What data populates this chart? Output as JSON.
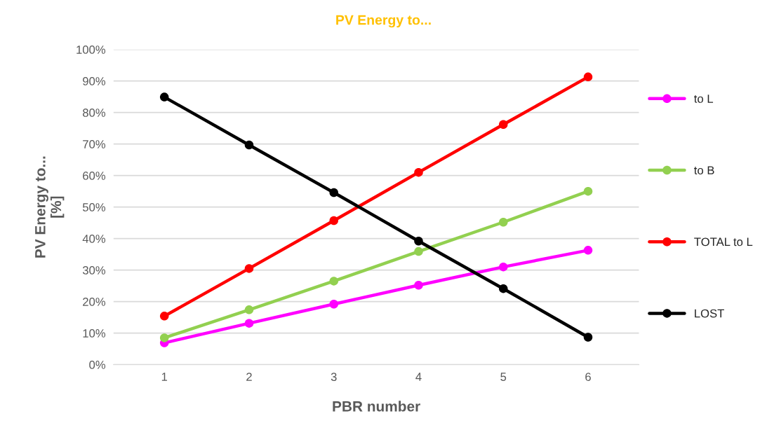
{
  "chart_data": {
    "type": "line",
    "title": "PV Energy to...",
    "xlabel": "PBR number",
    "ylabel": "PV Energy to...\n[%]",
    "categories": [
      "1",
      "2",
      "3",
      "4",
      "5",
      "6"
    ],
    "series": [
      {
        "name": "to L",
        "color": "#ff00ff",
        "values": [
          6.9,
          13.1,
          19.2,
          25.2,
          31.0,
          36.3
        ]
      },
      {
        "name": "to B",
        "color": "#92d050",
        "values": [
          8.5,
          17.4,
          26.5,
          35.9,
          45.2,
          55.0
        ]
      },
      {
        "name": "TOTAL to L",
        "color": "#ff0000",
        "values": [
          15.4,
          30.5,
          45.7,
          61.0,
          76.2,
          91.3
        ]
      },
      {
        "name": "LOST",
        "color": "#000000",
        "values": [
          84.9,
          69.7,
          54.6,
          39.2,
          24.1,
          8.7
        ]
      }
    ],
    "ylim": [
      0,
      100
    ],
    "yticks": [
      {
        "value": 0,
        "label": "0%"
      },
      {
        "value": 10,
        "label": "10%"
      },
      {
        "value": 20,
        "label": "20%"
      },
      {
        "value": 30,
        "label": "30%"
      },
      {
        "value": 40,
        "label": "40%"
      },
      {
        "value": 50,
        "label": "50%"
      },
      {
        "value": 60,
        "label": "60%"
      },
      {
        "value": 70,
        "label": "70%"
      },
      {
        "value": 80,
        "label": "80%"
      },
      {
        "value": 90,
        "label": "90%"
      },
      {
        "value": 100,
        "label": "100%"
      }
    ],
    "grid": "y",
    "legend": "right",
    "marker": "circle",
    "line_style": "solid"
  }
}
